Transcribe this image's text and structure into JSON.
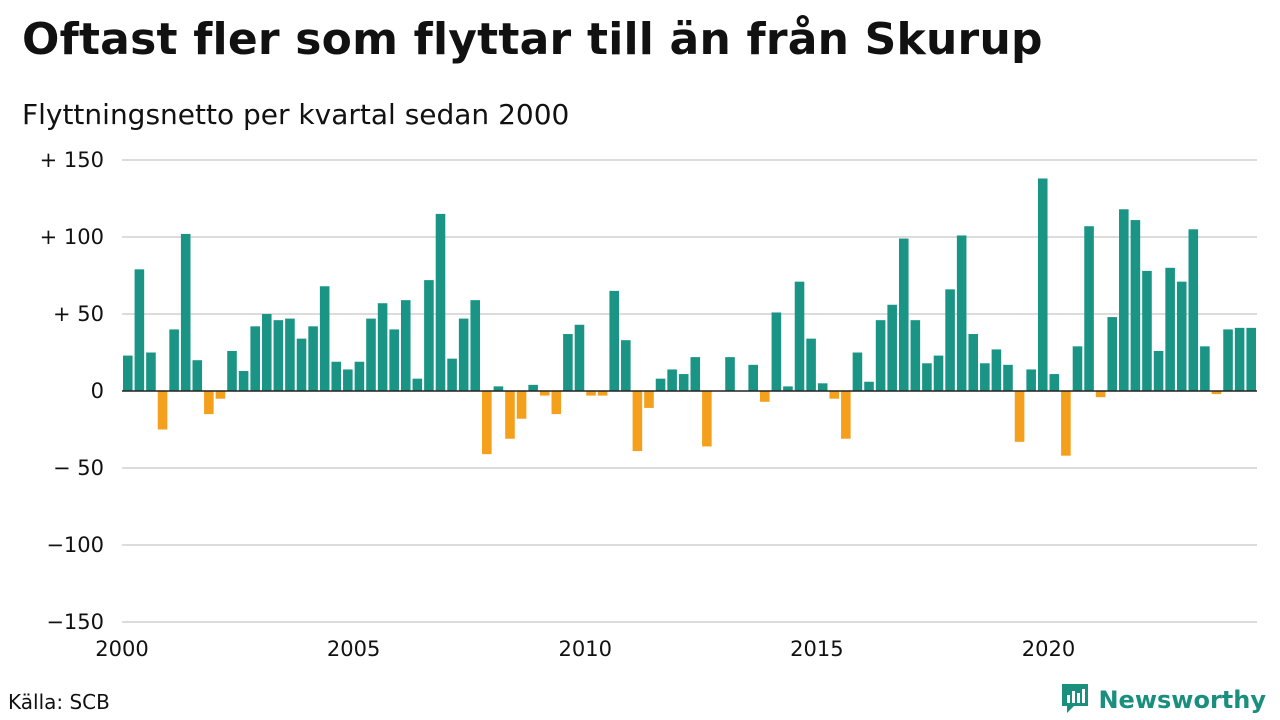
{
  "header": {
    "title": "Oftast fler som flyttar till än från Skurup",
    "subtitle": "Flyttningsnetto per kvartal sedan 2000"
  },
  "footer": {
    "source": "Källa: SCB",
    "brand": "Newsworthy"
  },
  "colors": {
    "positive": "#1a9585",
    "negative": "#f5a01d",
    "grid": "#dcdcdc",
    "zero_line": "#222222",
    "brand": "#1a8f7e"
  },
  "icons": {
    "brand_logo": "newsworthy-logo-icon"
  },
  "chart_data": {
    "type": "bar",
    "title": "Oftast fler som flyttar till än från Skurup",
    "subtitle": "Flyttningsnetto per kvartal sedan 2000",
    "x_tick_labels": [
      "2000",
      "2005",
      "2010",
      "2015",
      "2020"
    ],
    "x_tick_years": [
      2000,
      2005,
      2010,
      2015,
      2020
    ],
    "y_tick_values": [
      150,
      100,
      50,
      0,
      -50,
      -100,
      -150
    ],
    "y_tick_labels": [
      "+ 150",
      "+ 100",
      "+  50",
      "0",
      "− 50",
      "−100",
      "−150"
    ],
    "ylim": [
      -150,
      150
    ],
    "grid": true,
    "start_year": 2000,
    "periods_per_year": 4,
    "values": [
      23,
      79,
      25,
      -25,
      40,
      102,
      20,
      -15,
      -5,
      26,
      13,
      42,
      50,
      46,
      47,
      34,
      42,
      68,
      19,
      14,
      19,
      47,
      57,
      40,
      59,
      8,
      72,
      115,
      21,
      47,
      59,
      -41,
      3,
      -31,
      -18,
      4,
      -3,
      -15,
      37,
      43,
      -3,
      -3,
      65,
      33,
      -39,
      -11,
      8,
      14,
      11,
      22,
      -36,
      0,
      22,
      0,
      17,
      -7,
      51,
      3,
      71,
      34,
      5,
      -5,
      -31,
      25,
      6,
      46,
      56,
      99,
      46,
      18,
      23,
      66,
      101,
      37,
      18,
      27,
      17,
      -33,
      14,
      138,
      11,
      -42,
      29,
      107,
      -4,
      48,
      118,
      111,
      78,
      26,
      80,
      71,
      105,
      29,
      -2,
      40,
      41,
      41
    ]
  }
}
